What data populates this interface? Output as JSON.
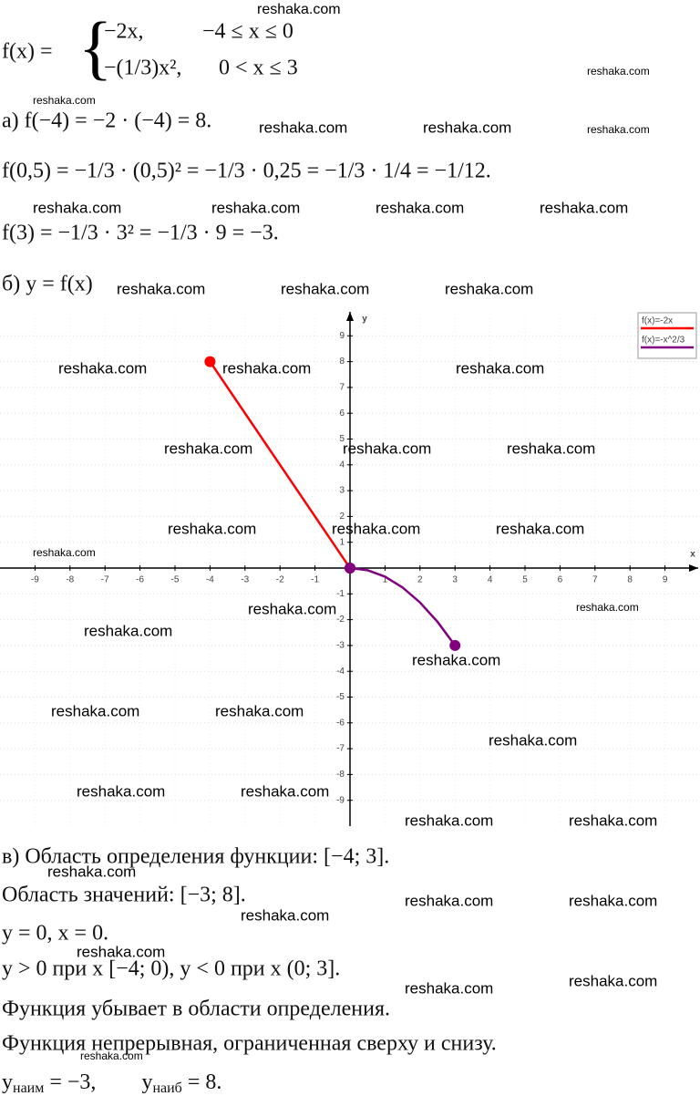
{
  "header": {
    "function_lhs": "f(x) =",
    "case_1": "−2x,",
    "condition_1": "−4 ≤ x ≤ 0",
    "case_2": "−(1/3)x²,",
    "condition_2": "0 < x ≤ 3"
  },
  "part_a": [
    "а) f(−4) = −2 · (−4) = 8.",
    "f(0,5) = −1/3 · (0,5)² = −1/3 · 0,25 = −1/3 · 1/4 = −1/12.",
    "f(3) = −1/3 · 3² = −1/3 · 9 = −3."
  ],
  "part_b": "б) y = f(x)",
  "part_c": [
    "в) Область определения функции: [−4; 3].",
    "Область значений: [−3; 8].",
    "y = 0,       x = 0.",
    "y > 0 при x [−4; 0),        y < 0 при x (0; 3].",
    "Функция убывает в области определения.",
    "Функция непрерывная, ограниченная сверху и снизу."
  ],
  "extremes": {
    "min_symbol": "y",
    "min_subscript": "наим",
    "min_value": " = −3,",
    "max_symbol": "y",
    "max_subscript": "наиб",
    "max_value": " = 8."
  },
  "watermark": "reshaka.com",
  "chart_data": {
    "type": "line",
    "x_label": "x",
    "y_label": "y",
    "xlim": [
      -10,
      10
    ],
    "ylim": [
      -10,
      10
    ],
    "xticks": [
      -9,
      -8,
      -7,
      -6,
      -5,
      -4,
      -3,
      -2,
      -1,
      1,
      2,
      3,
      4,
      5,
      6,
      7,
      8,
      9
    ],
    "yticks": [
      -9,
      -8,
      -7,
      -6,
      -5,
      -4,
      -3,
      -2,
      -1,
      1,
      2,
      3,
      4,
      5,
      6,
      7,
      8,
      9
    ],
    "grid": true,
    "legend": "upper right",
    "series": [
      {
        "name": "f(x)=-2x",
        "color": "#ff0000",
        "x": [
          -4,
          0
        ],
        "values": [
          8,
          0
        ]
      },
      {
        "name": "f(x)=-x^2/3",
        "color": "#800080",
        "x": [
          0,
          0.5,
          1,
          1.5,
          2,
          2.5,
          3
        ],
        "values": [
          0,
          -0.0833,
          -0.3333,
          -0.75,
          -1.3333,
          -2.0833,
          -3
        ]
      }
    ]
  }
}
